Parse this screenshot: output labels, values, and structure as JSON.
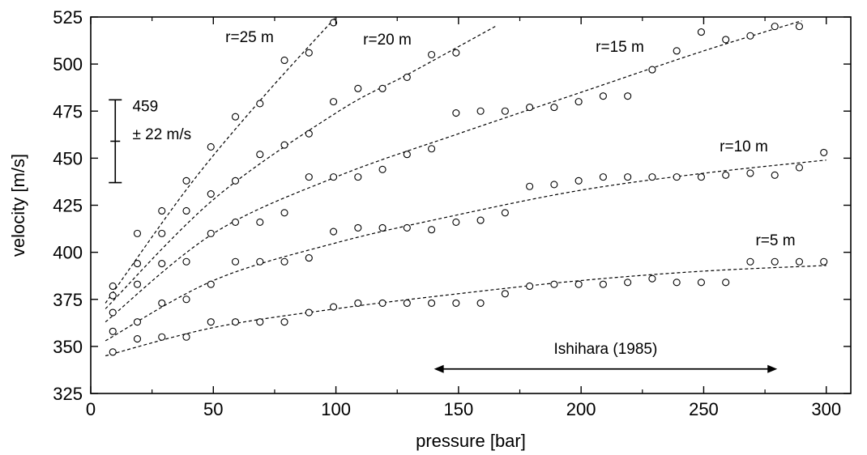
{
  "chart_data": {
    "type": "scatter",
    "title": "",
    "xlabel": "pressure [bar]",
    "ylabel": "velocity [m/s]",
    "xlim": [
      0,
      310
    ],
    "ylim": [
      325,
      525
    ],
    "xticks": [
      0,
      50,
      100,
      150,
      200,
      250,
      300
    ],
    "yticks": [
      325,
      350,
      375,
      400,
      425,
      450,
      475,
      500,
      525
    ],
    "grid": false,
    "line_style": "dashed",
    "marker": "open-circle",
    "series": [
      {
        "name": "r=5 m",
        "x": [
          9,
          19,
          29,
          39,
          49,
          59,
          69,
          79,
          89,
          99,
          109,
          119,
          129,
          139,
          149,
          159,
          169,
          179,
          189,
          199,
          209,
          219,
          229,
          239,
          249,
          259,
          269,
          279,
          289,
          299
        ],
        "y": [
          347,
          354,
          355,
          355,
          363,
          363,
          363,
          363,
          368,
          371,
          373,
          373,
          373,
          373,
          373,
          373,
          378,
          382,
          383,
          383,
          383,
          384,
          386,
          384,
          384,
          384,
          395,
          395,
          395,
          395
        ],
        "fit": {
          "x": [
            6,
            50,
            100,
            150,
            200,
            250,
            300
          ],
          "y": [
            345,
            360,
            370,
            378,
            385,
            390,
            393
          ]
        }
      },
      {
        "name": "r=10 m",
        "x": [
          9,
          19,
          29,
          39,
          49,
          59,
          69,
          79,
          89,
          99,
          109,
          119,
          129,
          139,
          149,
          159,
          169,
          179,
          189,
          199,
          209,
          219,
          229,
          239,
          249,
          259,
          269,
          279,
          289,
          299
        ],
        "y": [
          358,
          363,
          373,
          375,
          383,
          395,
          395,
          395,
          397,
          411,
          413,
          413,
          413,
          412,
          416,
          417,
          421,
          435,
          436,
          438,
          440,
          440,
          440,
          440,
          440,
          441,
          442,
          441,
          445,
          453
        ],
        "fit": {
          "x": [
            6,
            50,
            100,
            150,
            200,
            250,
            300
          ],
          "y": [
            353,
            385,
            405,
            420,
            433,
            442,
            449
          ]
        }
      },
      {
        "name": "r=15 m",
        "x": [
          9,
          19,
          29,
          39,
          49,
          59,
          69,
          79,
          89,
          99,
          109,
          119,
          129,
          139,
          149,
          159,
          169,
          179,
          189,
          199,
          209,
          219,
          229,
          239,
          249,
          259,
          269,
          279,
          289
        ],
        "y": [
          368,
          383,
          394,
          395,
          410,
          416,
          416,
          421,
          440,
          440,
          440,
          444,
          452,
          455,
          474,
          475,
          475,
          477,
          477,
          480,
          483,
          483,
          497,
          507,
          517,
          513,
          515,
          520,
          520
        ],
        "fit": {
          "x": [
            6,
            50,
            100,
            150,
            200,
            250,
            290
          ],
          "y": [
            363,
            410,
            440,
            463,
            485,
            507,
            523
          ]
        }
      },
      {
        "name": "r=20 m",
        "x": [
          9,
          19,
          29,
          39,
          49,
          59,
          69,
          79,
          89,
          99,
          109,
          119,
          129,
          139,
          149
        ],
        "y": [
          377,
          394,
          410,
          422,
          431,
          438,
          452,
          457,
          463,
          480,
          487,
          487,
          493,
          505,
          506
        ],
        "fit": {
          "x": [
            6,
            50,
            100,
            130,
            165
          ],
          "y": [
            370,
            428,
            474,
            495,
            520
          ]
        }
      },
      {
        "name": "r=25 m",
        "x": [
          9,
          19,
          29,
          39,
          49,
          59,
          69,
          79,
          89,
          99
        ],
        "y": [
          382,
          410,
          422,
          438,
          456,
          472,
          479,
          502,
          506,
          522
        ],
        "fit": {
          "x": [
            6,
            40,
            70,
            100
          ],
          "y": [
            373,
            435,
            482,
            525
          ]
        }
      }
    ],
    "annotations": [
      {
        "text": "459",
        "x": 17,
        "y": 475
      },
      {
        "text": "± 22 m/s",
        "x": 17,
        "y": 460
      },
      {
        "text": "Ishihara (1985)",
        "x": 210,
        "y": 346
      }
    ],
    "error_bar": {
      "x": 10,
      "center": 459,
      "half_width": 22
    },
    "range_arrow": {
      "x_start": 140,
      "x_end": 280,
      "y": 338
    }
  }
}
